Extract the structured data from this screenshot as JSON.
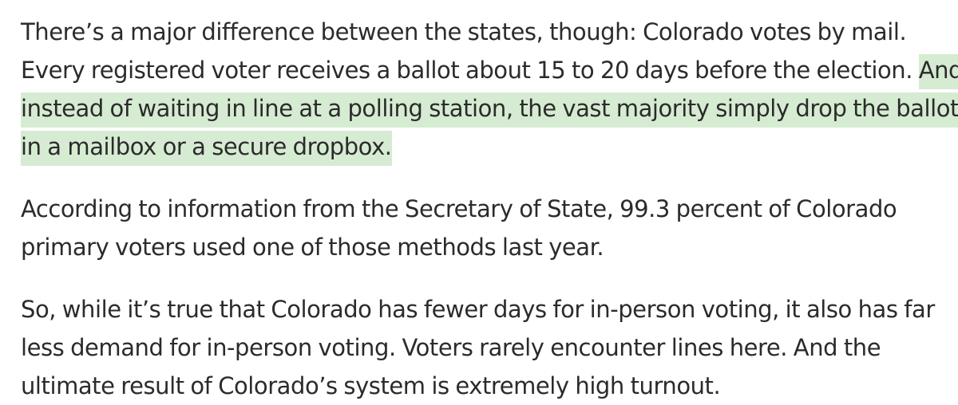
{
  "article": {
    "paragraph_1": {
      "line_1": "There’s a major difference between the states, though: Colorado votes by mail.",
      "line_2_plain": "Every registered voter receives a ballot about 15 to 20 days before the election. ",
      "line_2_highlight": "And",
      "line_3_highlight": "instead of waiting in line at a polling station, the vast majority simply drop the ballot",
      "line_4_highlight": "in a mailbox or a secure dropbox."
    },
    "paragraph_2": {
      "line_1": "According to information from the Secretary of State, 99.3 percent of Colorado",
      "line_2": "primary voters used one of those methods last year."
    },
    "paragraph_3": {
      "line_1": "So, while it’s true that Colorado has fewer days for in-person voting, it also has far",
      "line_2": "less demand for in-person voting. Voters rarely encounter lines here. And the",
      "line_3": "ultimate result of Colorado’s system is extremely high turnout."
    },
    "highlight_color": "#d6ecd2",
    "text_color": "#2b2b2b"
  }
}
